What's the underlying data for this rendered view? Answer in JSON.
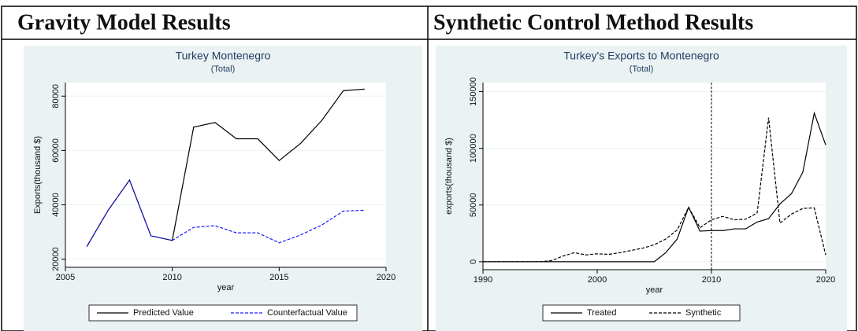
{
  "table": {
    "headers": [
      "Gravity Model Results",
      "Synthetic Control Method Results"
    ]
  },
  "chart_data": [
    {
      "type": "line",
      "title": "Turkey Montenegro",
      "subtitle": "(Total)",
      "x_label": "year",
      "y_label": "Exports(thousand $)",
      "x": [
        2006,
        2007,
        2008,
        2009,
        2010,
        2011,
        2012,
        2013,
        2014,
        2015,
        2016,
        2017,
        2018,
        2019
      ],
      "series": [
        {
          "name": "Predicted Value",
          "color": "#000000",
          "style": "solid",
          "values": [
            24600,
            38000,
            49100,
            28600,
            26900,
            68600,
            70300,
            64300,
            64300,
            56300,
            62600,
            71100,
            82000,
            82600
          ]
        },
        {
          "name": "Counterfactual Value",
          "color": "#1a1aff",
          "style": "dashed",
          "values": [
            24600,
            38000,
            49100,
            28600,
            26900,
            31700,
            32300,
            29700,
            29700,
            26000,
            28900,
            32600,
            37700,
            38000
          ]
        }
      ],
      "xlim": [
        2005,
        2020
      ],
      "xticks": [
        2005,
        2010,
        2015,
        2020
      ],
      "ylim": [
        17000,
        85000
      ],
      "yticks": [
        20000,
        40000,
        60000,
        80000
      ],
      "grid": true,
      "legend": "bottom"
    },
    {
      "type": "line",
      "title": "Turkey's Exports to Montenegro",
      "subtitle": "(Total)",
      "x_label": "year",
      "y_label": "exports(thousand $)",
      "x": [
        1990,
        1991,
        1992,
        1993,
        1994,
        1995,
        1996,
        1997,
        1998,
        1999,
        2000,
        2001,
        2002,
        2003,
        2004,
        2005,
        2006,
        2007,
        2008,
        2009,
        2010,
        2011,
        2012,
        2013,
        2014,
        2015,
        2016,
        2017,
        2018,
        2019,
        2020
      ],
      "series": [
        {
          "name": "Treated",
          "color": "#000000",
          "style": "solid",
          "values": [
            0,
            0,
            0,
            0,
            0,
            0,
            0,
            0,
            0,
            0,
            0,
            0,
            0,
            0,
            0,
            0,
            8000,
            20000,
            48000,
            27000,
            27500,
            27500,
            29000,
            29000,
            35000,
            38000,
            51000,
            60000,
            79000,
            131000,
            103000
          ]
        },
        {
          "name": "Synthetic",
          "color": "#000000",
          "style": "dashed",
          "values": [
            0,
            0,
            0,
            0,
            0,
            0,
            1000,
            5000,
            8000,
            6000,
            7000,
            6500,
            8000,
            10000,
            12000,
            15000,
            20000,
            28000,
            48000,
            30000,
            37000,
            40000,
            37000,
            37500,
            43000,
            127000,
            34000,
            42000,
            47000,
            47500,
            6000
          ]
        }
      ],
      "vline": 2010,
      "xlim": [
        1990,
        2020
      ],
      "xticks": [
        1990,
        2000,
        2010,
        2020
      ],
      "ylim": [
        -7000,
        158000
      ],
      "yticks": [
        0,
        50000,
        100000,
        150000
      ],
      "grid": true,
      "legend": "bottom"
    }
  ]
}
